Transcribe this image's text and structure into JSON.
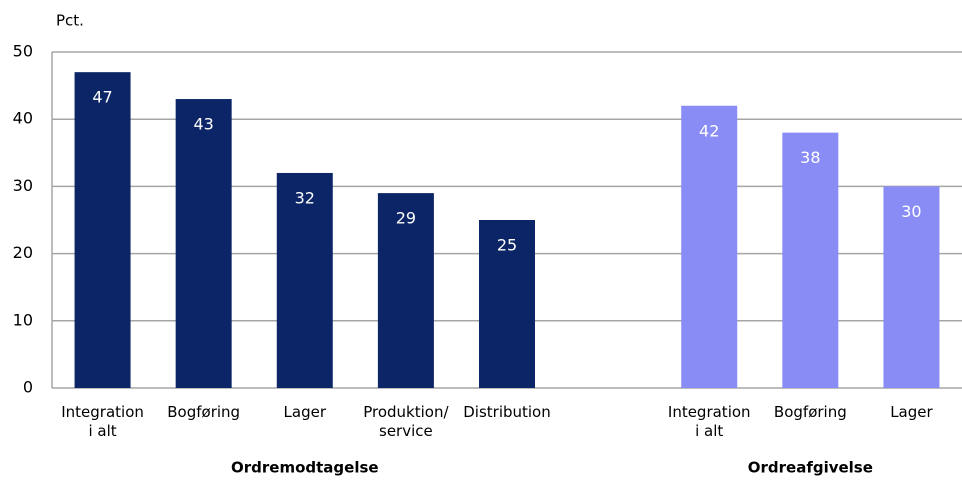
{
  "chart_data": {
    "type": "bar",
    "y_label": "Pct.",
    "categories": [
      "Integration\ni alt",
      "Bogføring",
      "Lager",
      "Produktion/\nservice",
      "Distribution",
      null,
      "Integration\ni alt",
      "Bogføring",
      "Lager"
    ],
    "series": [
      {
        "name": "Ordremodtagelse",
        "color": "#0b2566",
        "values": [
          47,
          43,
          32,
          29,
          25,
          null,
          null,
          null,
          null
        ]
      },
      {
        "name": "Ordreafgivelse",
        "color": "#8a8cf6",
        "values": [
          null,
          null,
          null,
          null,
          null,
          null,
          42,
          38,
          30
        ]
      }
    ],
    "ylim": [
      0,
      50
    ],
    "yticks": [
      0,
      10,
      20,
      30,
      40,
      50
    ],
    "grid": true
  }
}
